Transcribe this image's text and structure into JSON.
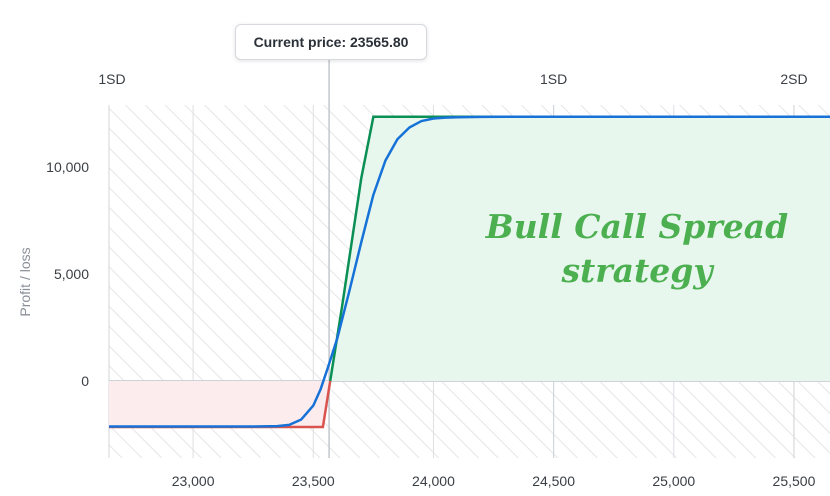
{
  "current_price_text": "Current price: 23565.80",
  "overlay_title": [
    "Bull Call Spread",
    "strategy"
  ],
  "colors": {
    "payoff_at_expiry": "#0a8f55",
    "payoff_today": "#1672d6",
    "loss": "#d9534f",
    "profit_fill": "#e8f7ee",
    "loss_fill": "#fdecee",
    "overlay_text": "#4caf50"
  },
  "chart_data": {
    "type": "line",
    "ylabel": "Profit / loss",
    "xlim": [
      22650,
      25650
    ],
    "ylim": [
      -3600,
      12900
    ],
    "x_ticks": [
      23000,
      23500,
      24000,
      24500,
      25000,
      25500
    ],
    "x_tick_labels": [
      "23,000",
      "23,500",
      "24,000",
      "24,500",
      "25,000",
      "25,500"
    ],
    "y_ticks": [
      0,
      5000,
      10000
    ],
    "y_tick_labels": [
      "0",
      "5,000",
      "10,000"
    ],
    "current_price": 23565.8,
    "sd_markers": [
      {
        "label": "1SD",
        "x": 22650
      },
      {
        "label": "1SD",
        "x": 24500
      },
      {
        "label": "2SD",
        "x": 25500
      }
    ],
    "series": [
      {
        "role": "at-expiry",
        "x": [
          22650,
          23000,
          23500,
          23540,
          23620,
          23700,
          23750,
          24000,
          24500,
          25000,
          25650
        ],
        "y": [
          -2150,
          -2150,
          -2150,
          -2150,
          3500,
          9500,
          12350,
          12350,
          12350,
          12350,
          12350
        ]
      },
      {
        "role": "today",
        "x": [
          22650,
          23000,
          23250,
          23350,
          23400,
          23450,
          23500,
          23530,
          23560,
          23600,
          23650,
          23700,
          23750,
          23800,
          23850,
          23900,
          23950,
          24000,
          24050,
          24100,
          24200,
          24300,
          24500,
          25000,
          25650
        ],
        "y": [
          -2130,
          -2130,
          -2130,
          -2110,
          -2050,
          -1800,
          -1150,
          -400,
          600,
          2000,
          4200,
          6500,
          8700,
          10300,
          11300,
          11850,
          12150,
          12270,
          12310,
          12330,
          12345,
          12350,
          12350,
          12350,
          12350
        ]
      }
    ]
  }
}
